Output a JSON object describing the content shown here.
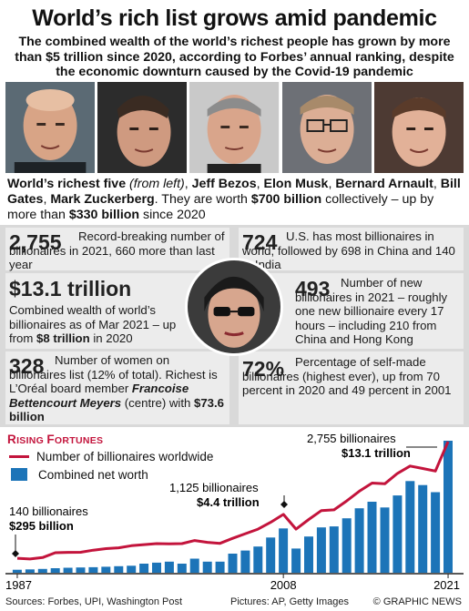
{
  "header": {
    "title": "World’s rich list grows amid pandemic",
    "subtitle": "The combined wealth of the world’s richest people has grown by more than $5 trillion since 2020, according to Forbes’ annual ranking, despite the economic downturn caused by the Covid-19 pandemic"
  },
  "photos": [
    {
      "name": "Jeff Bezos"
    },
    {
      "name": "Elon Musk"
    },
    {
      "name": "Bernard Arnault"
    },
    {
      "name": "Bill Gates"
    },
    {
      "name": "Mark Zuckerberg"
    }
  ],
  "caption": {
    "lead": "World’s richest five",
    "from_left": "(from left)",
    "sep": ", ",
    "names": [
      "Jeff Bezos",
      "Elon Musk",
      "Bernard Arnault",
      "Bill Gates",
      "Mark Zuckerberg"
    ],
    "mid": ". They are worth ",
    "worth": "$700 billion",
    "mid2": " collectively – up by more than ",
    "increase": "$330 billion",
    "tail": " since 2020"
  },
  "stats": {
    "billionaires": {
      "value": "2,755",
      "text": "Record-breaking number of billionaires in 2021, 660 more than last year"
    },
    "us": {
      "value": "724",
      "text": "U.S. has most billionaires in world, followed by 698 in China and 140 in India"
    },
    "wealth": {
      "value": "$13.1 trillion",
      "text_a": "Combined wealth of world’s billionaires as of Mar 2021 – up from ",
      "text_b": "$8 trillion",
      "text_c": " in 2020"
    },
    "new": {
      "value": "493",
      "text": "Number of new billionaires in 2021 – roughly one new billionaire every 17 hours – including 210 from China and Hong Kong"
    },
    "women": {
      "value": "328",
      "text_a": "Number of women on billionaires list (12% of total). Richest is L’Oréal board member ",
      "name": "Francoise Bettencourt Meyers",
      "text_b": " (centre) with ",
      "amount": "$73.6 billion"
    },
    "selfmade": {
      "value": "72%",
      "text": "Percentage of self-made billionaires (highest ever), up from 70 percent in 2020 and 49 percent in 2001"
    }
  },
  "chart_title": {
    "first": "R",
    "rest": "ISING ",
    "first2": "F",
    "rest2": "ORTUNES"
  },
  "legend": {
    "line": "Number of billionaires worldwide",
    "bar": "Combined net worth"
  },
  "annotations": {
    "a1987_count": "140 billionaires",
    "a1987_worth": "$295 billion",
    "a2008_count": "1,125 billionaires",
    "a2008_worth": "$4.4 trillion",
    "a2021_count": "2,755 billionaires",
    "a2021_worth": "$13.1 trillion"
  },
  "footer": {
    "sources": "Sources: Forbes, UPI, Washington Post",
    "pictures": "Pictures: AP, Getty Images",
    "credit": "© GRAPHIC NEWS"
  },
  "colors": {
    "line": "#c3143c",
    "bar": "#1c74b8",
    "panel": "#d9d9d9",
    "cell": "#ececec"
  },
  "chart_data": {
    "type": "bar",
    "x": [
      1987,
      1988,
      1989,
      1990,
      1991,
      1992,
      1993,
      1994,
      1995,
      1996,
      1997,
      1998,
      1999,
      2000,
      2001,
      2002,
      2003,
      2004,
      2005,
      2006,
      2007,
      2008,
      2009,
      2010,
      2011,
      2012,
      2013,
      2014,
      2015,
      2016,
      2017,
      2018,
      2019,
      2020,
      2021
    ],
    "x_tick_labels": [
      "1987",
      "2008",
      "2021"
    ],
    "series": [
      {
        "name": "Number of billionaires worldwide",
        "kind": "line",
        "values": [
          140,
          125,
          157,
          266,
          274,
          275,
          322,
          358,
          376,
          423,
          446,
          470,
          465,
          470,
          538,
          497,
          476,
          587,
          691,
          793,
          946,
          1125,
          793,
          1011,
          1210,
          1226,
          1426,
          1645,
          1826,
          1810,
          2043,
          2208,
          2153,
          2095,
          2755
        ]
      },
      {
        "name": "Combined net worth",
        "kind": "bar",
        "unit": "$ trillion",
        "values": [
          0.295,
          0.33,
          0.38,
          0.45,
          0.5,
          0.52,
          0.55,
          0.6,
          0.65,
          0.7,
          0.9,
          1.0,
          1.1,
          0.9,
          1.4,
          1.1,
          1.1,
          1.9,
          2.2,
          2.6,
          3.5,
          4.4,
          2.4,
          3.6,
          4.5,
          4.6,
          5.4,
          6.4,
          7.05,
          6.48,
          7.67,
          9.1,
          8.7,
          8.0,
          13.1
        ]
      }
    ],
    "highlights": [
      {
        "x": 1987,
        "count": 140,
        "worth": "$295 billion"
      },
      {
        "x": 2008,
        "count": 1125,
        "worth": "$4.4 trillion"
      },
      {
        "x": 2021,
        "count": 2755,
        "worth": "$13.1 trillion"
      }
    ]
  }
}
